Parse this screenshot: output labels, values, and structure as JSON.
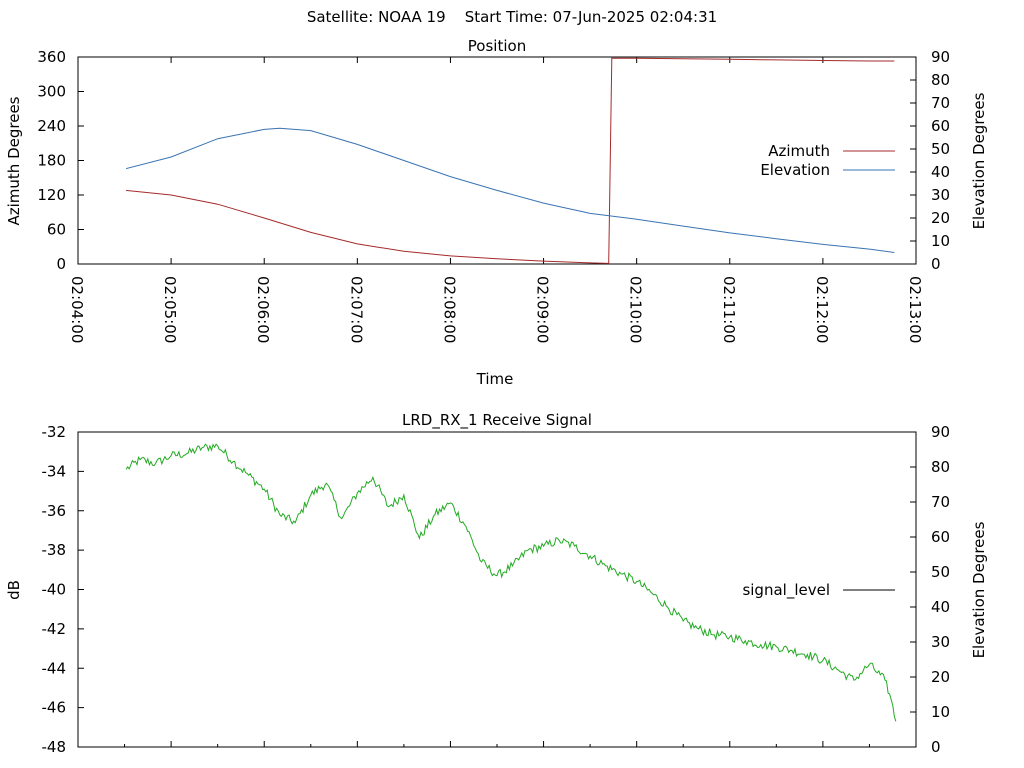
{
  "page": {
    "title": "Satellite: NOAA 19    Start Time: 07-Jun-2025 02:04:31"
  },
  "colors": {
    "azimuth": "#a52a2a",
    "elevation": "#3a73b3",
    "signal": "#22aa22",
    "legend_signal": "#000000",
    "axis": "#000000"
  },
  "chart_data": [
    {
      "type": "line",
      "title": "Position",
      "xlabel": "Time",
      "ylabel": "Azimuth Degrees",
      "y2label": "Elevation Degrees",
      "xlim": [
        "02:04:00",
        "02:13:00"
      ],
      "x_ticks": [
        "02:04:00",
        "02:05:00",
        "02:06:00",
        "02:07:00",
        "02:08:00",
        "02:09:00",
        "02:10:00",
        "02:11:00",
        "02:12:00",
        "02:13:00"
      ],
      "ylim": [
        0,
        360
      ],
      "y_ticks": [
        0,
        60,
        120,
        180,
        240,
        300,
        360
      ],
      "y2lim": [
        0,
        90
      ],
      "y2_ticks": [
        0,
        10,
        20,
        30,
        40,
        50,
        60,
        70,
        80,
        90
      ],
      "grid": false,
      "legend": "right",
      "series": [
        {
          "name": "Azimuth",
          "axis": "y",
          "x": [
            "02:04:31",
            "02:05:00",
            "02:05:30",
            "02:06:00",
            "02:06:30",
            "02:07:00",
            "02:07:30",
            "02:08:00",
            "02:08:30",
            "02:09:00",
            "02:09:30",
            "02:09:42",
            "02:09:44",
            "02:10:00",
            "02:10:30",
            "02:11:00",
            "02:11:30",
            "02:12:00",
            "02:12:30",
            "02:12:46"
          ],
          "values": [
            128,
            120,
            104,
            80,
            55,
            35,
            22,
            14,
            9,
            5,
            2,
            1,
            358,
            358,
            357,
            356,
            355,
            354,
            353,
            353
          ]
        },
        {
          "name": "Elevation",
          "axis": "y2",
          "x": [
            "02:04:31",
            "02:05:00",
            "02:05:30",
            "02:06:00",
            "02:06:10",
            "02:06:30",
            "02:07:00",
            "02:07:30",
            "02:08:00",
            "02:08:30",
            "02:09:00",
            "02:09:30",
            "02:10:00",
            "02:10:30",
            "02:11:00",
            "02:11:30",
            "02:12:00",
            "02:12:30",
            "02:12:46"
          ],
          "values": [
            41.5,
            46.5,
            54.5,
            58.5,
            59,
            58,
            52,
            45,
            38,
            32,
            26.5,
            22,
            19.5,
            16.5,
            13.5,
            11,
            8.5,
            6.5,
            5
          ]
        }
      ]
    },
    {
      "type": "line",
      "title": "LRD_RX_1 Receive Signal",
      "ylabel": "dB",
      "y2label": "Elevation Degrees",
      "xlim": [
        "02:04:00",
        "02:13:00"
      ],
      "ylim": [
        -48,
        -32
      ],
      "y_ticks": [
        -48,
        -46,
        -44,
        -42,
        -40,
        -38,
        -36,
        -34,
        -32
      ],
      "y2lim": [
        0,
        90
      ],
      "y2_ticks": [
        0,
        10,
        20,
        30,
        40,
        50,
        60,
        70,
        80,
        90
      ],
      "grid": false,
      "legend": "right",
      "series": [
        {
          "name": "signal_level",
          "x": [
            "02:04:31",
            "02:04:40",
            "02:04:50",
            "02:05:00",
            "02:05:10",
            "02:05:20",
            "02:05:30",
            "02:05:40",
            "02:05:50",
            "02:06:00",
            "02:06:10",
            "02:06:20",
            "02:06:30",
            "02:06:40",
            "02:06:50",
            "02:07:00",
            "02:07:10",
            "02:07:20",
            "02:07:30",
            "02:07:40",
            "02:07:50",
            "02:08:00",
            "02:08:10",
            "02:08:20",
            "02:08:30",
            "02:08:40",
            "02:08:50",
            "02:09:00",
            "02:09:10",
            "02:09:20",
            "02:09:30",
            "02:09:40",
            "02:09:50",
            "02:10:00",
            "02:10:10",
            "02:10:20",
            "02:10:30",
            "02:10:40",
            "02:10:50",
            "02:11:00",
            "02:11:10",
            "02:11:20",
            "02:11:30",
            "02:11:40",
            "02:11:50",
            "02:12:00",
            "02:12:10",
            "02:12:20",
            "02:12:30",
            "02:12:40",
            "02:12:44",
            "02:12:47"
          ],
          "values": [
            -33.9,
            -33.4,
            -33.6,
            -33.2,
            -33.1,
            -32.8,
            -32.7,
            -33.5,
            -34.2,
            -34.9,
            -36.2,
            -36.6,
            -35.2,
            -34.6,
            -36.4,
            -35.1,
            -34.3,
            -35.8,
            -35.2,
            -37.4,
            -36.2,
            -35.6,
            -36.8,
            -38.6,
            -39.3,
            -38.8,
            -38.0,
            -37.8,
            -37.5,
            -37.8,
            -38.3,
            -38.8,
            -39.2,
            -39.6,
            -40.2,
            -40.9,
            -41.6,
            -42.0,
            -42.3,
            -42.4,
            -42.6,
            -42.8,
            -42.9,
            -43.1,
            -43.3,
            -43.6,
            -44.1,
            -44.6,
            -43.8,
            -44.6,
            -45.6,
            -46.7
          ]
        }
      ]
    }
  ]
}
